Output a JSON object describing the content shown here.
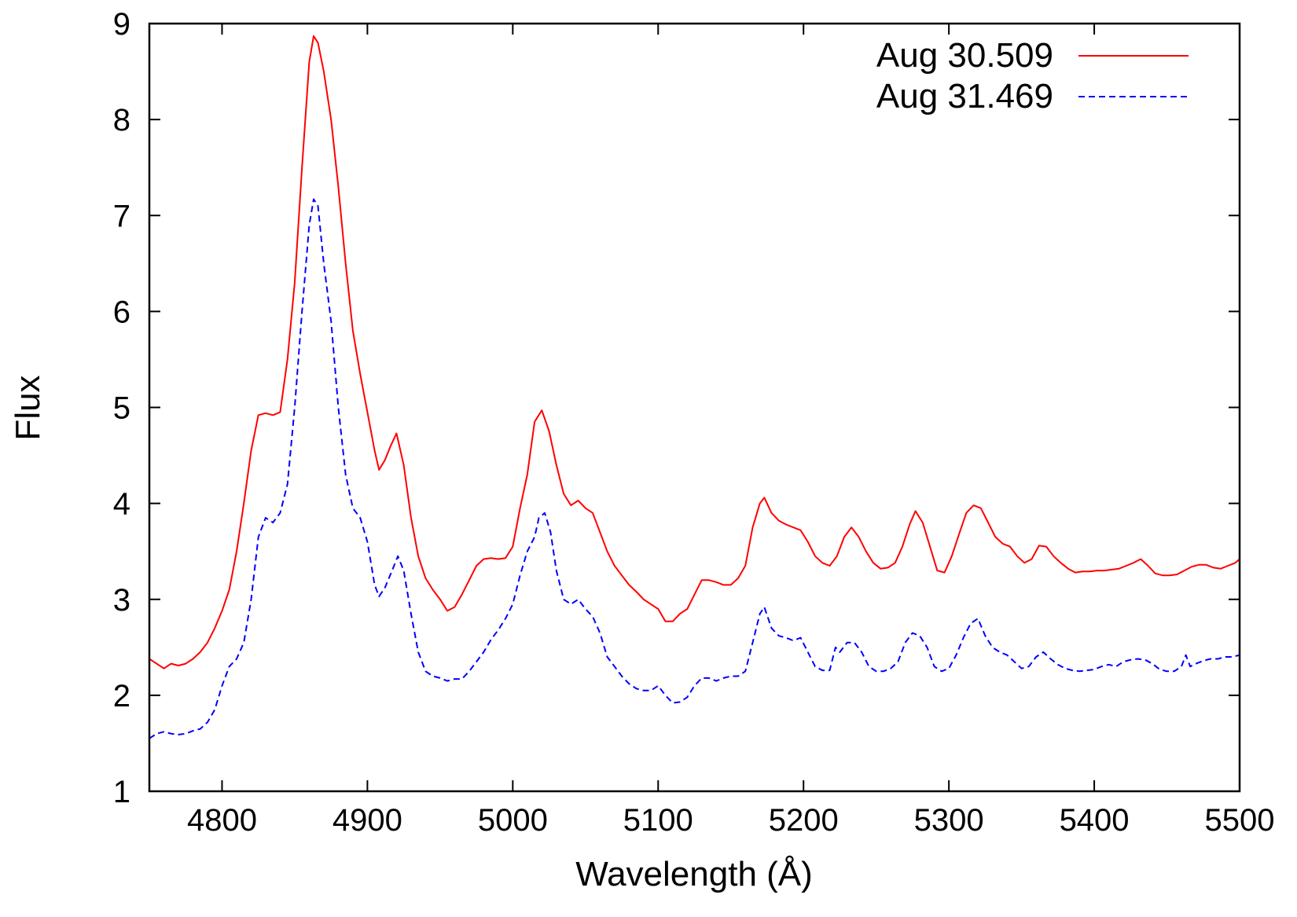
{
  "chart_data": {
    "type": "line",
    "title": "",
    "xlabel": "Wavelength (Å)",
    "ylabel": "Flux",
    "xlim": [
      4750,
      5500
    ],
    "ylim": [
      1,
      9
    ],
    "xticks": [
      4800,
      4900,
      5000,
      5100,
      5200,
      5300,
      5400,
      5500
    ],
    "yticks": [
      1,
      2,
      3,
      4,
      5,
      6,
      7,
      8,
      9
    ],
    "grid": false,
    "legend_position": "top-right",
    "series": [
      {
        "name": "Aug 30.509",
        "color": "#ff0000",
        "dash": "solid",
        "points": [
          [
            4750,
            2.38
          ],
          [
            4755,
            2.33
          ],
          [
            4760,
            2.28
          ],
          [
            4765,
            2.33
          ],
          [
            4770,
            2.31
          ],
          [
            4775,
            2.33
          ],
          [
            4780,
            2.38
          ],
          [
            4785,
            2.45
          ],
          [
            4790,
            2.55
          ],
          [
            4795,
            2.7
          ],
          [
            4800,
            2.88
          ],
          [
            4805,
            3.1
          ],
          [
            4810,
            3.5
          ],
          [
            4815,
            4.0
          ],
          [
            4820,
            4.55
          ],
          [
            4825,
            4.92
          ],
          [
            4830,
            4.94
          ],
          [
            4835,
            4.92
          ],
          [
            4840,
            4.95
          ],
          [
            4845,
            5.5
          ],
          [
            4850,
            6.3
          ],
          [
            4855,
            7.5
          ],
          [
            4860,
            8.6
          ],
          [
            4863,
            8.87
          ],
          [
            4866,
            8.8
          ],
          [
            4870,
            8.5
          ],
          [
            4875,
            8.0
          ],
          [
            4880,
            7.3
          ],
          [
            4885,
            6.5
          ],
          [
            4890,
            5.8
          ],
          [
            4895,
            5.35
          ],
          [
            4900,
            4.95
          ],
          [
            4905,
            4.55
          ],
          [
            4908,
            4.35
          ],
          [
            4912,
            4.45
          ],
          [
            4916,
            4.6
          ],
          [
            4920,
            4.73
          ],
          [
            4925,
            4.4
          ],
          [
            4930,
            3.85
          ],
          [
            4935,
            3.45
          ],
          [
            4940,
            3.22
          ],
          [
            4945,
            3.1
          ],
          [
            4950,
            3.0
          ],
          [
            4955,
            2.88
          ],
          [
            4960,
            2.92
          ],
          [
            4965,
            3.05
          ],
          [
            4970,
            3.2
          ],
          [
            4975,
            3.35
          ],
          [
            4980,
            3.42
          ],
          [
            4985,
            3.43
          ],
          [
            4990,
            3.42
          ],
          [
            4995,
            3.43
          ],
          [
            5000,
            3.55
          ],
          [
            5005,
            3.95
          ],
          [
            5010,
            4.3
          ],
          [
            5015,
            4.85
          ],
          [
            5020,
            4.97
          ],
          [
            5025,
            4.75
          ],
          [
            5030,
            4.4
          ],
          [
            5035,
            4.1
          ],
          [
            5040,
            3.98
          ],
          [
            5045,
            4.03
          ],
          [
            5050,
            3.95
          ],
          [
            5055,
            3.9
          ],
          [
            5060,
            3.7
          ],
          [
            5065,
            3.5
          ],
          [
            5070,
            3.35
          ],
          [
            5075,
            3.25
          ],
          [
            5080,
            3.15
          ],
          [
            5085,
            3.08
          ],
          [
            5090,
            3.0
          ],
          [
            5095,
            2.95
          ],
          [
            5100,
            2.9
          ],
          [
            5105,
            2.77
          ],
          [
            5110,
            2.77
          ],
          [
            5115,
            2.85
          ],
          [
            5120,
            2.9
          ],
          [
            5125,
            3.05
          ],
          [
            5130,
            3.2
          ],
          [
            5135,
            3.2
          ],
          [
            5140,
            3.18
          ],
          [
            5145,
            3.15
          ],
          [
            5150,
            3.15
          ],
          [
            5155,
            3.22
          ],
          [
            5160,
            3.35
          ],
          [
            5165,
            3.75
          ],
          [
            5170,
            4.0
          ],
          [
            5173,
            4.06
          ],
          [
            5178,
            3.9
          ],
          [
            5183,
            3.82
          ],
          [
            5188,
            3.78
          ],
          [
            5193,
            3.75
          ],
          [
            5198,
            3.72
          ],
          [
            5203,
            3.6
          ],
          [
            5208,
            3.45
          ],
          [
            5213,
            3.38
          ],
          [
            5218,
            3.35
          ],
          [
            5223,
            3.45
          ],
          [
            5228,
            3.65
          ],
          [
            5233,
            3.75
          ],
          [
            5238,
            3.65
          ],
          [
            5243,
            3.5
          ],
          [
            5248,
            3.38
          ],
          [
            5253,
            3.32
          ],
          [
            5258,
            3.33
          ],
          [
            5263,
            3.38
          ],
          [
            5268,
            3.55
          ],
          [
            5273,
            3.78
          ],
          [
            5277,
            3.92
          ],
          [
            5282,
            3.8
          ],
          [
            5287,
            3.55
          ],
          [
            5292,
            3.3
          ],
          [
            5297,
            3.28
          ],
          [
            5302,
            3.45
          ],
          [
            5307,
            3.68
          ],
          [
            5312,
            3.9
          ],
          [
            5317,
            3.98
          ],
          [
            5322,
            3.95
          ],
          [
            5327,
            3.8
          ],
          [
            5332,
            3.65
          ],
          [
            5337,
            3.58
          ],
          [
            5342,
            3.55
          ],
          [
            5347,
            3.45
          ],
          [
            5352,
            3.38
          ],
          [
            5357,
            3.42
          ],
          [
            5362,
            3.56
          ],
          [
            5367,
            3.55
          ],
          [
            5372,
            3.45
          ],
          [
            5377,
            3.38
          ],
          [
            5382,
            3.32
          ],
          [
            5387,
            3.28
          ],
          [
            5392,
            3.29
          ],
          [
            5397,
            3.29
          ],
          [
            5402,
            3.3
          ],
          [
            5407,
            3.3
          ],
          [
            5412,
            3.31
          ],
          [
            5417,
            3.32
          ],
          [
            5422,
            3.35
          ],
          [
            5427,
            3.38
          ],
          [
            5432,
            3.42
          ],
          [
            5437,
            3.35
          ],
          [
            5442,
            3.27
          ],
          [
            5447,
            3.25
          ],
          [
            5452,
            3.25
          ],
          [
            5457,
            3.26
          ],
          [
            5462,
            3.3
          ],
          [
            5467,
            3.34
          ],
          [
            5472,
            3.36
          ],
          [
            5477,
            3.36
          ],
          [
            5482,
            3.33
          ],
          [
            5487,
            3.32
          ],
          [
            5492,
            3.35
          ],
          [
            5497,
            3.38
          ],
          [
            5500,
            3.42
          ]
        ]
      },
      {
        "name": "Aug 31.469",
        "color": "#0000ff",
        "dash": "dashed",
        "points": [
          [
            4750,
            1.55
          ],
          [
            4755,
            1.6
          ],
          [
            4760,
            1.62
          ],
          [
            4765,
            1.6
          ],
          [
            4770,
            1.59
          ],
          [
            4775,
            1.6
          ],
          [
            4780,
            1.63
          ],
          [
            4785,
            1.65
          ],
          [
            4790,
            1.72
          ],
          [
            4795,
            1.85
          ],
          [
            4800,
            2.1
          ],
          [
            4805,
            2.3
          ],
          [
            4810,
            2.38
          ],
          [
            4815,
            2.55
          ],
          [
            4820,
            3.0
          ],
          [
            4825,
            3.65
          ],
          [
            4830,
            3.85
          ],
          [
            4835,
            3.8
          ],
          [
            4840,
            3.9
          ],
          [
            4845,
            4.2
          ],
          [
            4850,
            5.0
          ],
          [
            4855,
            6.0
          ],
          [
            4860,
            6.9
          ],
          [
            4863,
            7.17
          ],
          [
            4866,
            7.1
          ],
          [
            4870,
            6.5
          ],
          [
            4875,
            5.9
          ],
          [
            4880,
            5.0
          ],
          [
            4885,
            4.3
          ],
          [
            4890,
            3.95
          ],
          [
            4895,
            3.85
          ],
          [
            4900,
            3.6
          ],
          [
            4905,
            3.15
          ],
          [
            4908,
            3.03
          ],
          [
            4912,
            3.12
          ],
          [
            4917,
            3.3
          ],
          [
            4921,
            3.45
          ],
          [
            4925,
            3.3
          ],
          [
            4930,
            2.85
          ],
          [
            4935,
            2.45
          ],
          [
            4940,
            2.25
          ],
          [
            4945,
            2.2
          ],
          [
            4950,
            2.18
          ],
          [
            4955,
            2.15
          ],
          [
            4960,
            2.17
          ],
          [
            4965,
            2.17
          ],
          [
            4970,
            2.25
          ],
          [
            4975,
            2.35
          ],
          [
            4980,
            2.45
          ],
          [
            4985,
            2.58
          ],
          [
            4990,
            2.68
          ],
          [
            4995,
            2.8
          ],
          [
            5000,
            2.95
          ],
          [
            5005,
            3.25
          ],
          [
            5010,
            3.5
          ],
          [
            5015,
            3.65
          ],
          [
            5018,
            3.85
          ],
          [
            5022,
            3.9
          ],
          [
            5026,
            3.7
          ],
          [
            5030,
            3.3
          ],
          [
            5035,
            3.0
          ],
          [
            5040,
            2.95
          ],
          [
            5045,
            3.0
          ],
          [
            5050,
            2.9
          ],
          [
            5055,
            2.82
          ],
          [
            5060,
            2.65
          ],
          [
            5065,
            2.4
          ],
          [
            5070,
            2.3
          ],
          [
            5075,
            2.2
          ],
          [
            5080,
            2.12
          ],
          [
            5085,
            2.07
          ],
          [
            5090,
            2.05
          ],
          [
            5095,
            2.05
          ],
          [
            5100,
            2.1
          ],
          [
            5105,
            2.0
          ],
          [
            5110,
            1.92
          ],
          [
            5115,
            1.93
          ],
          [
            5120,
            1.98
          ],
          [
            5125,
            2.1
          ],
          [
            5130,
            2.18
          ],
          [
            5135,
            2.18
          ],
          [
            5140,
            2.15
          ],
          [
            5145,
            2.18
          ],
          [
            5150,
            2.2
          ],
          [
            5155,
            2.2
          ],
          [
            5160,
            2.25
          ],
          [
            5165,
            2.55
          ],
          [
            5170,
            2.85
          ],
          [
            5173,
            2.92
          ],
          [
            5178,
            2.7
          ],
          [
            5183,
            2.62
          ],
          [
            5188,
            2.6
          ],
          [
            5193,
            2.57
          ],
          [
            5198,
            2.6
          ],
          [
            5203,
            2.45
          ],
          [
            5208,
            2.3
          ],
          [
            5213,
            2.26
          ],
          [
            5218,
            2.26
          ],
          [
            5222,
            2.5
          ],
          [
            5225,
            2.45
          ],
          [
            5230,
            2.55
          ],
          [
            5235,
            2.55
          ],
          [
            5240,
            2.45
          ],
          [
            5245,
            2.3
          ],
          [
            5250,
            2.25
          ],
          [
            5255,
            2.25
          ],
          [
            5260,
            2.28
          ],
          [
            5265,
            2.35
          ],
          [
            5270,
            2.55
          ],
          [
            5275,
            2.65
          ],
          [
            5280,
            2.62
          ],
          [
            5285,
            2.5
          ],
          [
            5290,
            2.3
          ],
          [
            5295,
            2.25
          ],
          [
            5300,
            2.28
          ],
          [
            5305,
            2.42
          ],
          [
            5310,
            2.6
          ],
          [
            5315,
            2.75
          ],
          [
            5320,
            2.8
          ],
          [
            5325,
            2.62
          ],
          [
            5330,
            2.5
          ],
          [
            5335,
            2.45
          ],
          [
            5340,
            2.42
          ],
          [
            5345,
            2.35
          ],
          [
            5350,
            2.28
          ],
          [
            5355,
            2.3
          ],
          [
            5360,
            2.4
          ],
          [
            5365,
            2.45
          ],
          [
            5370,
            2.38
          ],
          [
            5375,
            2.32
          ],
          [
            5380,
            2.28
          ],
          [
            5385,
            2.26
          ],
          [
            5390,
            2.25
          ],
          [
            5395,
            2.26
          ],
          [
            5400,
            2.27
          ],
          [
            5405,
            2.3
          ],
          [
            5410,
            2.32
          ],
          [
            5415,
            2.3
          ],
          [
            5420,
            2.35
          ],
          [
            5425,
            2.37
          ],
          [
            5430,
            2.38
          ],
          [
            5435,
            2.37
          ],
          [
            5440,
            2.33
          ],
          [
            5445,
            2.27
          ],
          [
            5450,
            2.25
          ],
          [
            5455,
            2.25
          ],
          [
            5460,
            2.3
          ],
          [
            5463,
            2.42
          ],
          [
            5466,
            2.3
          ],
          [
            5470,
            2.33
          ],
          [
            5475,
            2.36
          ],
          [
            5480,
            2.38
          ],
          [
            5485,
            2.38
          ],
          [
            5490,
            2.4
          ],
          [
            5495,
            2.4
          ],
          [
            5500,
            2.42
          ]
        ]
      }
    ]
  }
}
